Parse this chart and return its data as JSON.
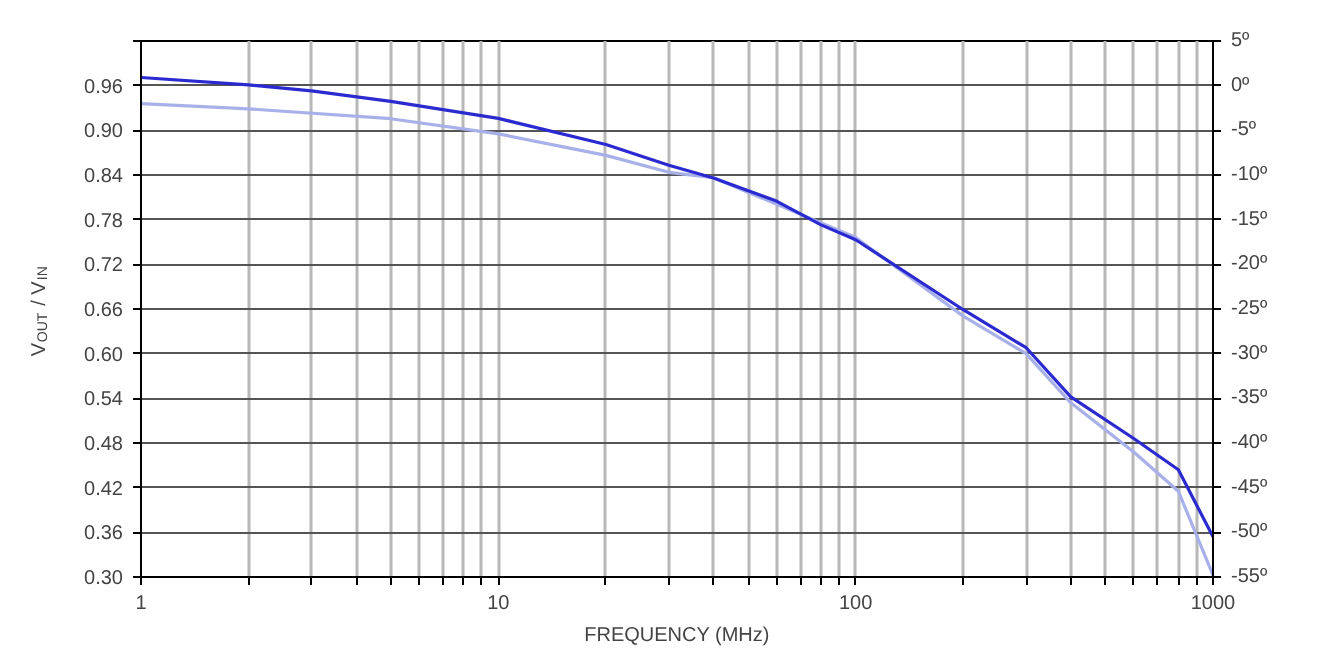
{
  "chart_data": {
    "type": "line",
    "xlabel": "FREQUENCY (MHz)",
    "ylabel": "V$_{OUT}$ / V$_{IN}$",
    "log": "x",
    "grid": true,
    "line_style": "solid",
    "marker": "none",
    "xlim": [
      1,
      1000
    ],
    "xticks": [
      1,
      {
        "value": 2,
        "label": null
      },
      {
        "value": 3,
        "label": null
      },
      {
        "value": 4,
        "label": null
      },
      {
        "value": 5,
        "label": null
      },
      {
        "value": 6,
        "label": null
      },
      {
        "value": 7,
        "label": null
      },
      {
        "value": 8,
        "label": null
      },
      {
        "value": 9,
        "label": null
      },
      10,
      {
        "value": 20,
        "label": null
      },
      {
        "value": 30,
        "label": null
      },
      {
        "value": 40,
        "label": null
      },
      {
        "value": 50,
        "label": null
      },
      {
        "value": 60,
        "label": null
      },
      {
        "value": 70,
        "label": null
      },
      {
        "value": 80,
        "label": null
      },
      {
        "value": 90,
        "label": null
      },
      100,
      {
        "value": 200,
        "label": null
      },
      {
        "value": 300,
        "label": null
      },
      {
        "value": 400,
        "label": null
      },
      {
        "value": 500,
        "label": null
      },
      {
        "value": 600,
        "label": null
      },
      {
        "value": 700,
        "label": null
      },
      {
        "value": 800,
        "label": null
      },
      {
        "value": 900,
        "label": null
      },
      1000
    ],
    "ylim": [
      0.3,
      1.02
    ],
    "yticks": [
      {
        "value": 0.3,
        "label": "0.30"
      },
      0.36,
      0.42,
      0.48,
      0.54,
      {
        "value": 0.6,
        "label": "0.60"
      },
      0.66,
      0.72,
      0.78,
      0.84,
      {
        "value": 0.9,
        "label": "0.90"
      },
      0.96,
      {
        "value": 1.02,
        "label": null
      }
    ],
    "y2lim": [
      -55,
      5
    ],
    "y2ticks": [
      {
        "value": -55,
        "label": "-55º"
      },
      {
        "value": -50,
        "label": "-50º"
      },
      {
        "value": -45,
        "label": "-45º"
      },
      {
        "value": -40,
        "label": "-40º"
      },
      {
        "value": -35,
        "label": "-35º"
      },
      {
        "value": -30,
        "label": "-30º"
      },
      {
        "value": -25,
        "label": "-25º"
      },
      {
        "value": -20,
        "label": "-20º"
      },
      {
        "value": -15,
        "label": "-15º"
      },
      {
        "value": -10,
        "label": "-10º"
      },
      {
        "value": -5,
        "label": "-5º"
      },
      {
        "value": 0,
        "label": "0º"
      },
      {
        "value": 5,
        "label": "5º"
      }
    ],
    "series": [
      {
        "color": "#a8b0ea",
        "axis": "y2",
        "x": [
          1,
          2,
          5,
          10,
          20,
          30,
          40,
          100,
          200,
          300,
          400,
          600,
          800,
          1000
        ],
        "values": [
          -2.0,
          -2.6,
          -3.7,
          -5.4,
          -7.8,
          -9.7,
          -10.3,
          -17,
          -25.8,
          -30,
          -35.5,
          -41,
          -45.4,
          -54.8
        ]
      },
      {
        "color": "#2a2ad0",
        "x": [
          1,
          2,
          3,
          5,
          10,
          20,
          30,
          40,
          60,
          80,
          100,
          200,
          300,
          400,
          600,
          800,
          1000
        ],
        "values": [
          0.971,
          0.961,
          0.953,
          0.939,
          0.916,
          0.881,
          0.853,
          0.836,
          0.805,
          0.773,
          0.753,
          0.659,
          0.608,
          0.542,
          0.486,
          0.444,
          0.354
        ]
      }
    ]
  }
}
